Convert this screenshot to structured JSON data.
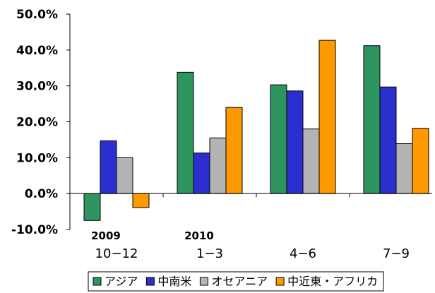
{
  "chart_data": {
    "type": "bar",
    "categories": [
      "10−12",
      "1−3",
      "4−6",
      "7−9"
    ],
    "year_labels": [
      {
        "category_index": 0,
        "text": "2009"
      },
      {
        "category_index": 1,
        "text": "2010"
      }
    ],
    "series": [
      {
        "name": "アジア",
        "color": "#2e9460",
        "values": [
          -7.5,
          33.8,
          30.3,
          41.2
        ]
      },
      {
        "name": "中南米",
        "color": "#2c2fcf",
        "values": [
          14.7,
          11.3,
          28.6,
          29.7
        ]
      },
      {
        "name": "オセアニア",
        "color": "#b4b4b4",
        "values": [
          10.0,
          15.5,
          18.0,
          13.9
        ]
      },
      {
        "name": "中近東・アフリカ",
        "color": "#ff9900",
        "values": [
          -3.9,
          24.0,
          42.7,
          18.2
        ]
      }
    ],
    "yticks": [
      {
        "value": 50,
        "label": "50.0%"
      },
      {
        "value": 40,
        "label": "40.0%"
      },
      {
        "value": 30,
        "label": "30.0%"
      },
      {
        "value": 20,
        "label": "20.0%"
      },
      {
        "value": 10,
        "label": "10.0%"
      },
      {
        "value": 0,
        "label": "0.0%"
      },
      {
        "value": -10,
        "label": "-10.0%"
      }
    ],
    "ylim": [
      -10,
      50
    ],
    "grid": false,
    "legend_position": "bottom-right"
  }
}
